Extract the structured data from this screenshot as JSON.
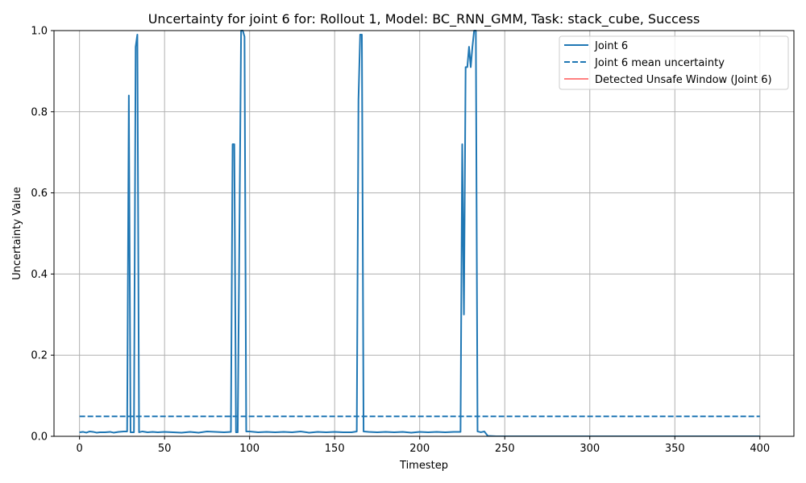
{
  "chart_data": {
    "type": "line",
    "title": "Uncertainty for joint 6 for: Rollout 1, Model: BC_RNN_GMM, Task: stack_cube, Success",
    "xlabel": "Timestep",
    "ylabel": "Uncertainty Value",
    "xlim": [
      -15,
      420
    ],
    "ylim": [
      0,
      1.0
    ],
    "xticks": [
      0,
      50,
      100,
      150,
      200,
      250,
      300,
      350,
      400
    ],
    "yticks": [
      0.0,
      0.2,
      0.4,
      0.6,
      0.8,
      1.0
    ],
    "xtick_labels": [
      "0",
      "50",
      "100",
      "150",
      "200",
      "250",
      "300",
      "350",
      "400"
    ],
    "ytick_labels": [
      "0.0",
      "0.2",
      "0.4",
      "0.6",
      "0.8",
      "1.0"
    ],
    "grid": true,
    "legend_position": "top-right",
    "series": [
      {
        "name": "Joint 6",
        "style": "solid",
        "color": "#1f77b4",
        "points": [
          [
            0,
            0.01
          ],
          [
            2,
            0.011
          ],
          [
            4,
            0.009
          ],
          [
            6,
            0.012
          ],
          [
            8,
            0.011
          ],
          [
            10,
            0.009
          ],
          [
            12,
            0.01
          ],
          [
            15,
            0.01
          ],
          [
            18,
            0.011
          ],
          [
            20,
            0.009
          ],
          [
            23,
            0.011
          ],
          [
            26,
            0.012
          ],
          [
            28,
            0.012
          ],
          [
            29,
            0.84
          ],
          [
            30,
            0.01
          ],
          [
            31,
            0.01
          ],
          [
            32,
            0.01
          ],
          [
            33,
            0.96
          ],
          [
            34,
            0.99
          ],
          [
            35,
            0.01
          ],
          [
            37,
            0.012
          ],
          [
            40,
            0.01
          ],
          [
            43,
            0.011
          ],
          [
            46,
            0.01
          ],
          [
            50,
            0.011
          ],
          [
            55,
            0.01
          ],
          [
            60,
            0.009
          ],
          [
            65,
            0.011
          ],
          [
            70,
            0.009
          ],
          [
            75,
            0.012
          ],
          [
            80,
            0.011
          ],
          [
            85,
            0.01
          ],
          [
            89,
            0.011
          ],
          [
            90,
            0.72
          ],
          [
            91,
            0.72
          ],
          [
            92,
            0.01
          ],
          [
            93,
            0.01
          ],
          [
            94,
            0.5
          ],
          [
            95,
            1.0
          ],
          [
            96,
            1.0
          ],
          [
            97,
            0.985
          ],
          [
            98,
            0.012
          ],
          [
            100,
            0.012
          ],
          [
            105,
            0.01
          ],
          [
            110,
            0.011
          ],
          [
            115,
            0.01
          ],
          [
            120,
            0.011
          ],
          [
            125,
            0.01
          ],
          [
            130,
            0.012
          ],
          [
            135,
            0.009
          ],
          [
            140,
            0.011
          ],
          [
            145,
            0.01
          ],
          [
            150,
            0.011
          ],
          [
            155,
            0.01
          ],
          [
            160,
            0.01
          ],
          [
            163,
            0.012
          ],
          [
            164,
            0.83
          ],
          [
            165,
            0.99
          ],
          [
            166,
            0.99
          ],
          [
            167,
            0.012
          ],
          [
            170,
            0.011
          ],
          [
            175,
            0.01
          ],
          [
            180,
            0.011
          ],
          [
            185,
            0.01
          ],
          [
            190,
            0.011
          ],
          [
            195,
            0.009
          ],
          [
            200,
            0.011
          ],
          [
            205,
            0.01
          ],
          [
            210,
            0.011
          ],
          [
            215,
            0.01
          ],
          [
            220,
            0.011
          ],
          [
            224,
            0.011
          ],
          [
            225,
            0.72
          ],
          [
            226,
            0.3
          ],
          [
            227,
            0.91
          ],
          [
            228,
            0.91
          ],
          [
            229,
            0.96
          ],
          [
            230,
            0.91
          ],
          [
            231,
            0.96
          ],
          [
            232,
            1.0
          ],
          [
            233,
            1.0
          ],
          [
            234,
            0.012
          ],
          [
            236,
            0.01
          ],
          [
            238,
            0.012
          ],
          [
            240,
            0.001
          ],
          [
            245,
            0.0
          ],
          [
            260,
            0.0
          ],
          [
            300,
            0.0
          ],
          [
            350,
            0.0
          ],
          [
            400,
            0.0
          ]
        ]
      },
      {
        "name": "Joint 6 mean uncertainty",
        "style": "dashed",
        "color": "#1f77b4",
        "points": [
          [
            0,
            0.049
          ],
          [
            400,
            0.049
          ]
        ]
      },
      {
        "name": "Detected Unsafe Window (Joint 6)",
        "style": "solid",
        "color": "#ff0000",
        "points": []
      }
    ]
  }
}
